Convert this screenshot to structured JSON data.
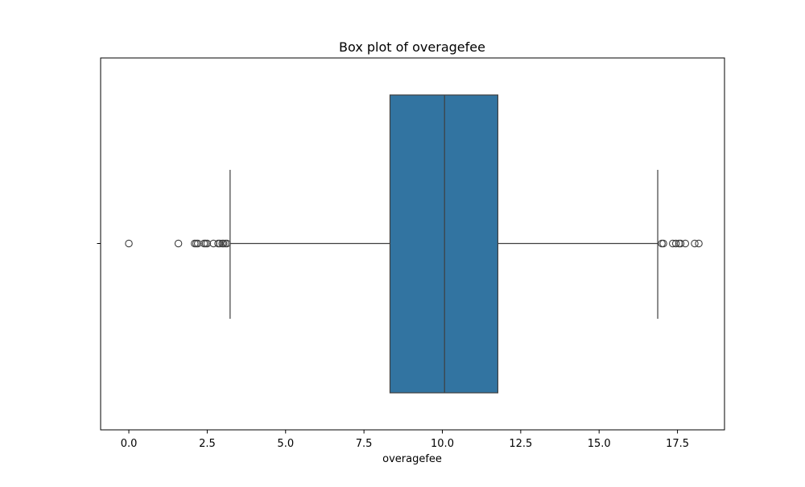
{
  "chart_data": {
    "type": "box",
    "title": "Box plot of overagefee",
    "xlabel": "overagefee",
    "ylabel": "",
    "xlim": [
      -0.9,
      19.0
    ],
    "xticks": [
      0.0,
      2.5,
      5.0,
      7.5,
      10.0,
      12.5,
      15.0,
      17.5
    ],
    "xtick_labels": [
      "0.0",
      "2.5",
      "5.0",
      "7.5",
      "10.0",
      "12.5",
      "15.0",
      "17.5"
    ],
    "grid": false,
    "orientation": "horizontal",
    "box": {
      "q1": 8.33,
      "median": 10.07,
      "q3": 11.77,
      "whisker_low": 3.23,
      "whisker_high": 16.87
    },
    "outliers": [
      0.0,
      1.58,
      2.1,
      2.15,
      2.2,
      2.4,
      2.45,
      2.5,
      2.7,
      2.85,
      2.9,
      2.98,
      3.02,
      3.08,
      3.13,
      17.0,
      17.05,
      17.35,
      17.45,
      17.55,
      17.6,
      17.75,
      18.05,
      18.18
    ],
    "colors": {
      "box_fill": "#3274a1",
      "line": "#3f3f3f",
      "background": "#ffffff"
    }
  }
}
